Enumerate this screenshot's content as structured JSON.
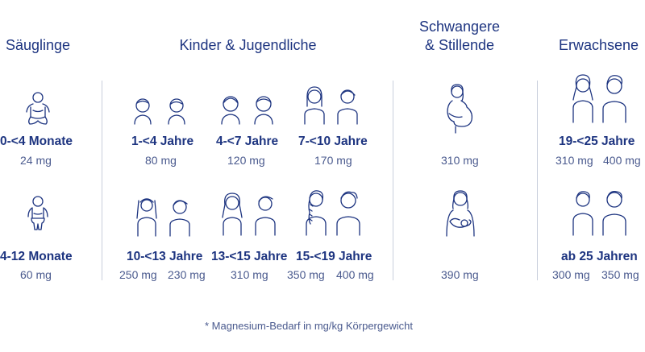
{
  "groups": {
    "infants": "Säuglinge",
    "children": "Kinder & Jugendliche",
    "pregnant_line1": "Schwangere",
    "pregnant_line2": "& Stillende",
    "adults": "Erwachsene"
  },
  "infants": [
    {
      "label": "0-<4 Monate",
      "value": "24 mg"
    },
    {
      "label": "4-12 Monate",
      "value": "60 mg"
    }
  ],
  "children": [
    {
      "label": "1-<4 Jahre",
      "value": "80 mg"
    },
    {
      "label": "4-<7 Jahre",
      "value": "120 mg"
    },
    {
      "label": "7-<10 Jahre",
      "value": "170 mg"
    },
    {
      "label": "10-<13 Jahre",
      "value_f": "250 mg",
      "value_m": "230 mg"
    },
    {
      "label": "13-<15 Jahre",
      "value": "310 mg"
    },
    {
      "label": "15-<19 Jahre",
      "value_f": "350 mg",
      "value_m": "400 mg"
    }
  ],
  "pregnant": [
    {
      "value": "310 mg"
    },
    {
      "value": "390 mg"
    }
  ],
  "adults": [
    {
      "label": "19-<25 Jahre",
      "value_f": "310 mg",
      "value_m": "400 mg"
    },
    {
      "label": "ab 25 Jahren",
      "value_f": "300 mg",
      "value_m": "350 mg"
    }
  ],
  "footnote": "* Magnesium-Bedarf in mg/kg Körpergewicht",
  "colors": {
    "primary": "#1d3480",
    "secondary": "#4a5a8e",
    "divider": "#c9cfdc"
  },
  "icons": [
    "baby-icon",
    "toddler-icon",
    "child-icon",
    "teen-icon",
    "woman-icon",
    "man-icon",
    "pregnant-woman-icon",
    "breastfeeding-woman-icon"
  ]
}
